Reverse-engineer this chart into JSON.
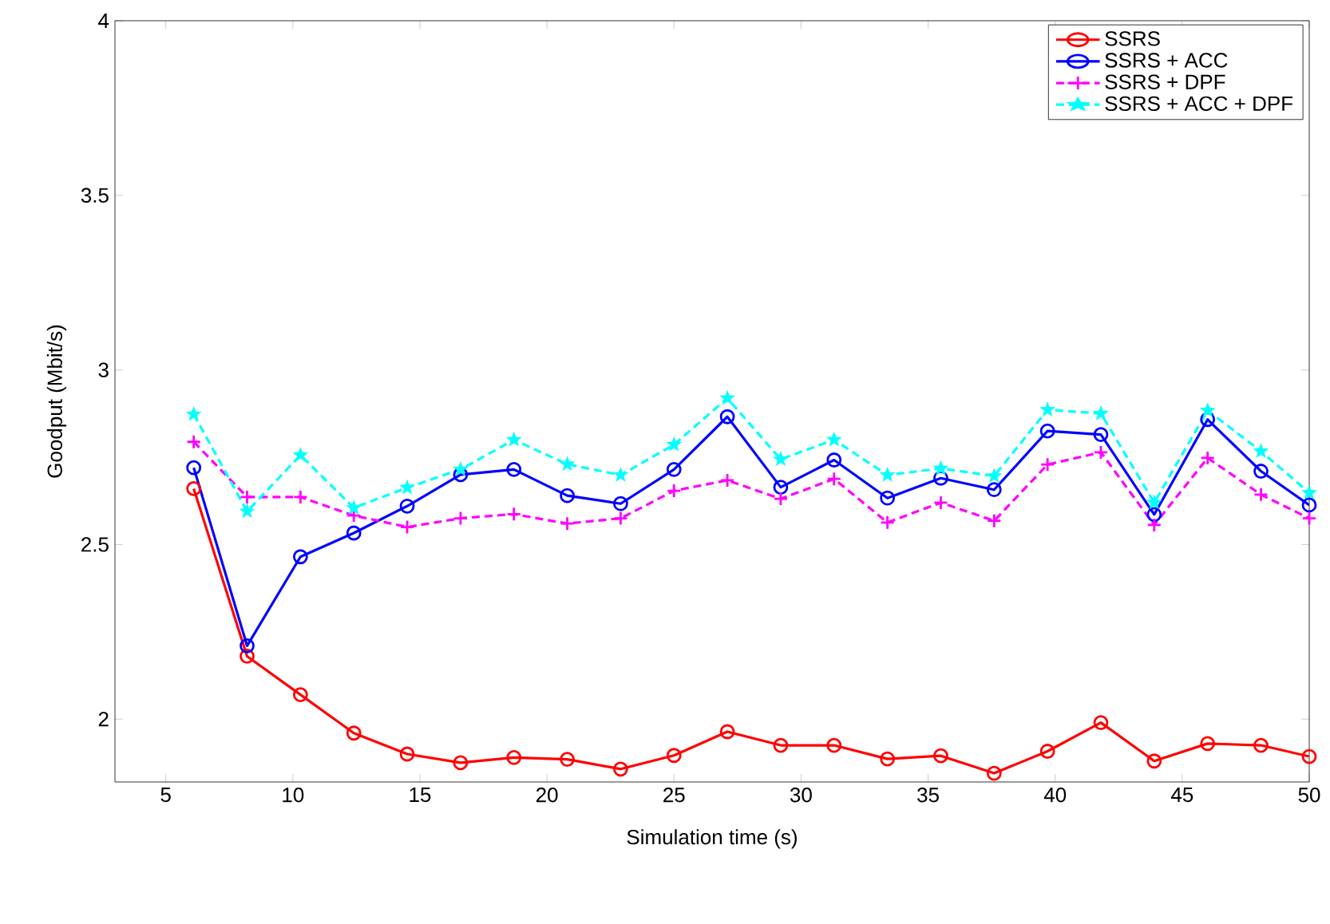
{
  "chart_data": {
    "type": "line",
    "xlabel": "Simulation time (s)",
    "ylabel": "Goodput (Mbit/s)",
    "x": [
      6.1,
      8.2,
      10.3,
      12.4,
      14.5,
      16.6,
      18.7,
      20.8,
      22.9,
      25.0,
      27.1,
      29.2,
      31.3,
      33.4,
      35.5,
      37.6,
      39.7,
      41.8,
      43.9,
      46.0,
      48.1,
      50
    ],
    "series": [
      {
        "name": "SSRS",
        "color": "#ff0000",
        "marker": "circle",
        "line_style": "solid",
        "values": [
          2.66,
          2.18,
          2.07,
          1.96,
          1.9,
          1.875,
          1.89,
          1.885,
          1.857,
          1.896,
          1.964,
          1.925,
          1.925,
          1.886,
          1.895,
          1.845,
          1.908,
          1.99,
          1.88,
          1.93,
          1.925,
          1.893
        ]
      },
      {
        "name": "SSRS + ACC",
        "color": "#0000ff",
        "marker": "circle",
        "line_style": "solid",
        "values": [
          2.72,
          2.21,
          2.465,
          2.533,
          2.61,
          2.7,
          2.715,
          2.64,
          2.617,
          2.715,
          2.866,
          2.664,
          2.742,
          2.633,
          2.69,
          2.657,
          2.825,
          2.815,
          2.586,
          2.858,
          2.71,
          2.613
        ]
      },
      {
        "name": "SSRS + DPF",
        "color": "#ff00ff",
        "marker": "cross",
        "line_style": "dashed",
        "values": [
          2.794,
          2.636,
          2.636,
          2.583,
          2.55,
          2.575,
          2.587,
          2.56,
          2.575,
          2.654,
          2.684,
          2.631,
          2.688,
          2.563,
          2.62,
          2.568,
          2.729,
          2.764,
          2.556,
          2.748,
          2.643,
          2.575
        ]
      },
      {
        "name": "SSRS + ACC + DPF",
        "color": "#00ffff",
        "marker": "star",
        "line_style": "dashed",
        "values": [
          2.873,
          2.595,
          2.756,
          2.605,
          2.663,
          2.715,
          2.8,
          2.73,
          2.699,
          2.786,
          2.919,
          2.744,
          2.8,
          2.699,
          2.718,
          2.696,
          2.886,
          2.875,
          2.62,
          2.884,
          2.767,
          2.648
        ]
      }
    ],
    "xlim": [
      3,
      50
    ],
    "ylim": [
      1.82,
      4
    ],
    "xticks": [
      5,
      10,
      15,
      20,
      25,
      30,
      35,
      40,
      45,
      50
    ],
    "yticks": [
      2,
      2.5,
      3,
      3.5,
      4
    ],
    "grid": false,
    "legend": "top right"
  }
}
